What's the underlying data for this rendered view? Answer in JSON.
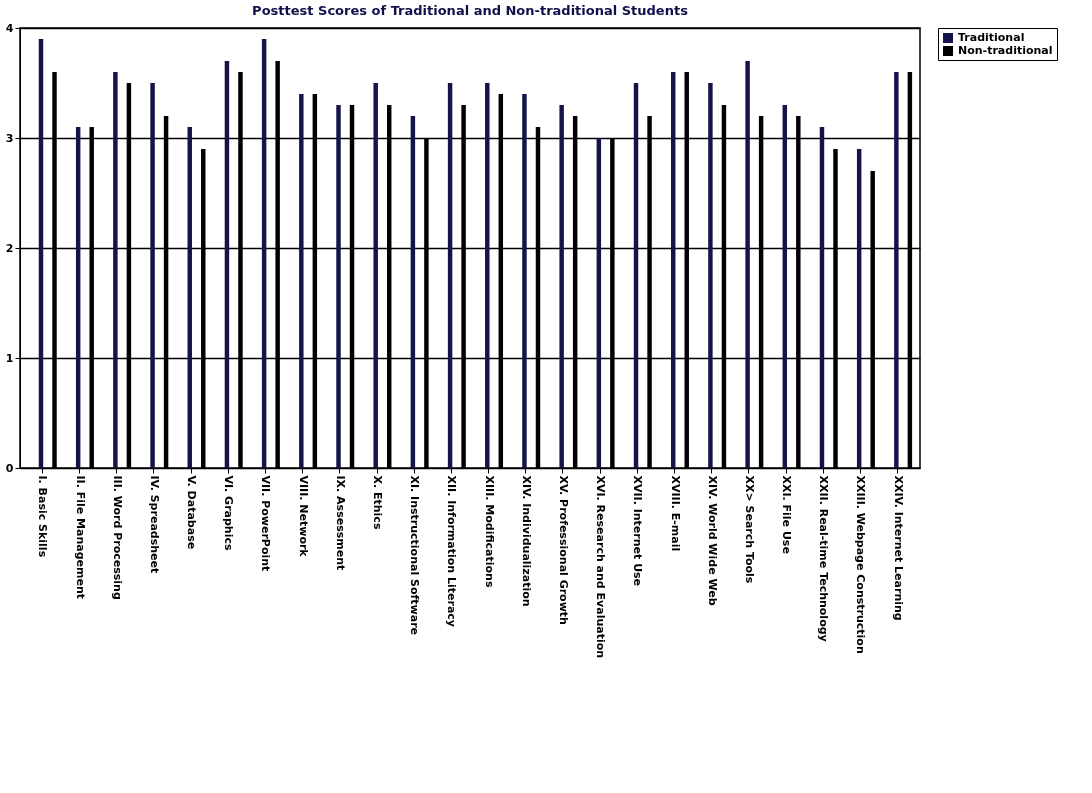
{
  "chart_data": {
    "type": "bar",
    "title": "Posttest Scores of Traditional and Non-traditional Students",
    "categories": [
      "I. Basic Skills",
      "II. File Management",
      "III. Word Processing",
      "IV. Spreadsheet",
      "V. Database",
      "VI. Graphics",
      "VII. PowerPoint",
      "VIII. Network",
      "IX. Assessment",
      "X. Ethics",
      "XI. Instructional Software",
      "XII. Information Literacy",
      "XIII. Modifications",
      "XIV. Individualization",
      "XV. Professional Growth",
      "XVI. Research and Evaluation",
      "XVII. Internet Use",
      "XVIII. E-mail",
      "XIV. World Wide Web",
      "XX> Search Tools",
      "XXI. File Use",
      "XXII. Real-time Technology",
      "XXIII. Webpage Construction",
      "XXIV. Internet Learning"
    ],
    "series": [
      {
        "name": "Traditional",
        "color": "#14144a",
        "values": [
          3.9,
          3.1,
          3.6,
          3.5,
          3.1,
          3.7,
          3.9,
          3.4,
          3.3,
          3.5,
          3.2,
          3.5,
          3.5,
          3.4,
          3.3,
          3.0,
          3.5,
          3.6,
          3.5,
          3.7,
          3.3,
          3.1,
          2.9,
          3.6
        ]
      },
      {
        "name": "Non-traditional",
        "color": "#000000",
        "values": [
          3.6,
          3.1,
          3.5,
          3.2,
          2.9,
          3.6,
          3.7,
          3.4,
          3.3,
          3.3,
          3.0,
          3.3,
          3.4,
          3.1,
          3.2,
          3.0,
          3.2,
          3.6,
          3.3,
          3.2,
          3.2,
          2.9,
          2.7,
          3.6
        ]
      }
    ],
    "ylim": [
      0,
      4
    ],
    "yticks": [
      0,
      1,
      2,
      3,
      4
    ],
    "grid": "y",
    "legend": "right"
  }
}
